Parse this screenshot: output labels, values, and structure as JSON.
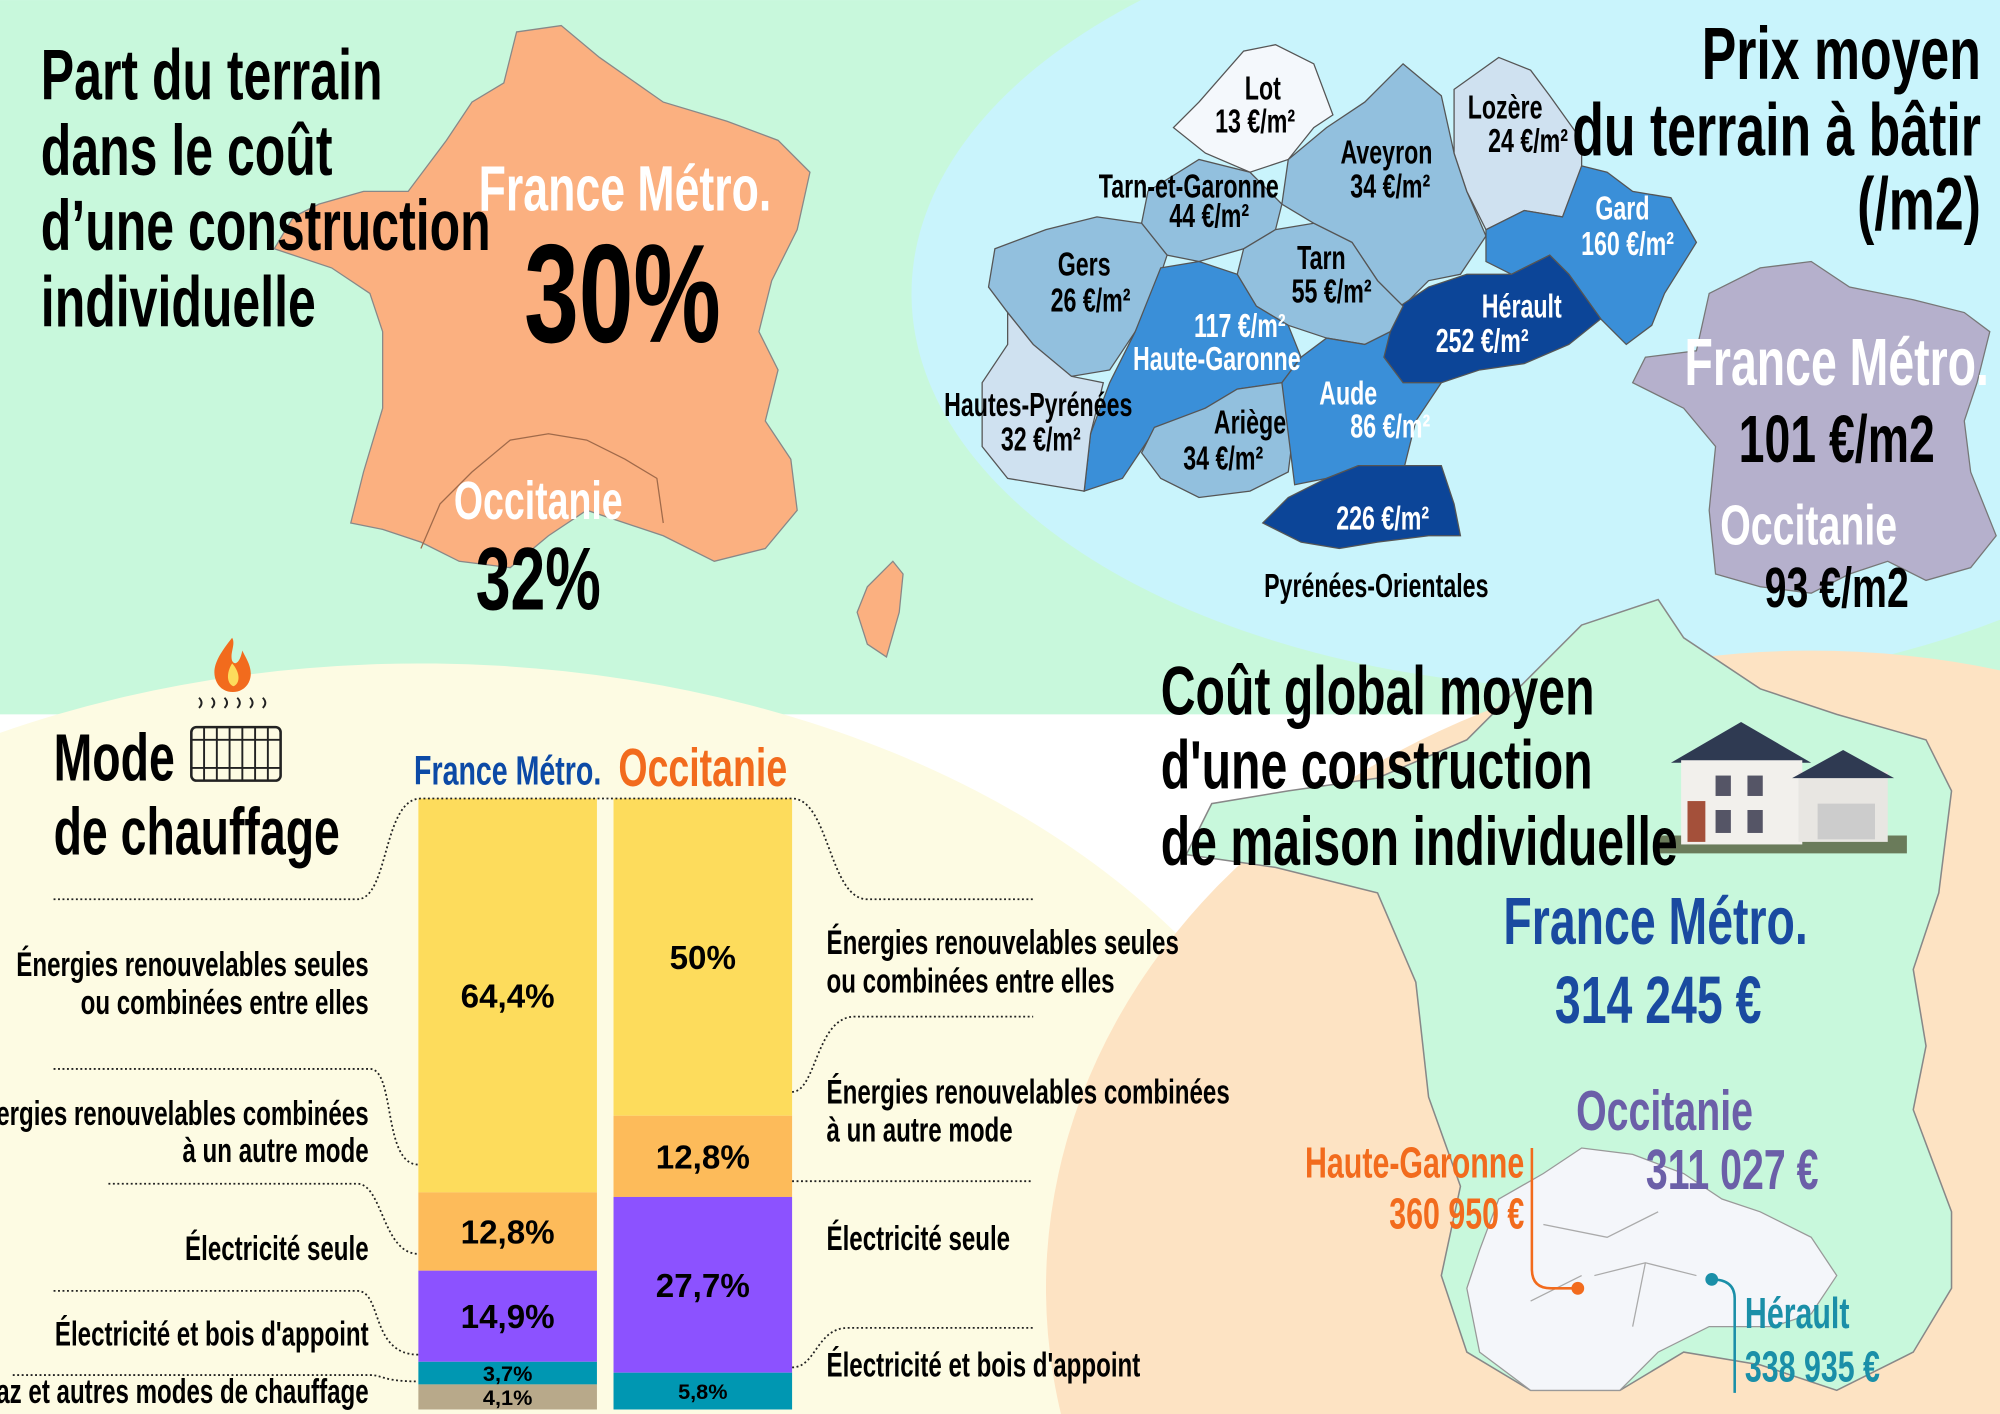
{
  "colors": {
    "mint": "#c8f8dc",
    "cyan": "#c9f4fc",
    "cream": "#fdfbe3",
    "peach": "#fde3c3",
    "france_orange": "#fbb080",
    "france_lilac": "#b5b0cc",
    "blue_dark": "#0c4598",
    "blue_mid": "#3a8fd8",
    "blue_light": "#92c0de",
    "blue_pale": "#cfe1f0",
    "white_dept": "#f4f8fc",
    "france_blue": "#1a4aa0",
    "occitanie_orange": "#f26b1d",
    "occitanie_purple": "#6b5fa8",
    "herault_teal": "#1a8fa8"
  },
  "land_share": {
    "title": [
      "Part du terrain",
      "dans le coût",
      "d’une construction",
      "individuelle"
    ],
    "france_label": "France Métro.",
    "france_value": "30%",
    "occitanie_label": "Occitanie",
    "occitanie_value": "32%"
  },
  "land_price": {
    "title": [
      "Prix moyen",
      "du terrain à bâtir",
      "(/m2)"
    ],
    "france_label": "France Métro.",
    "france_value": "101 €/m2",
    "occitanie_label": "Occitanie",
    "occitanie_value": "93 €/m2",
    "departments": [
      {
        "name": "Lot",
        "price": "13 €/m²",
        "shade": "white_dept"
      },
      {
        "name": "Lozère",
        "price": "24 €/m²",
        "shade": "blue_pale"
      },
      {
        "name": "Aveyron",
        "price": "34 €/m²",
        "shade": "blue_light"
      },
      {
        "name": "Tarn-et-Garonne",
        "price": "44 €/m²",
        "shade": "blue_light"
      },
      {
        "name": "Gard",
        "price": "160 €/m²",
        "shade": "blue_mid"
      },
      {
        "name": "Gers",
        "price": "26 €/m²",
        "shade": "blue_light"
      },
      {
        "name": "Tarn",
        "price": "55 €/m²",
        "shade": "blue_light"
      },
      {
        "name": "Hérault",
        "price": "252 €/m²",
        "shade": "blue_dark"
      },
      {
        "name": "Haute-Garonne",
        "price": "117 €/m²",
        "shade": "blue_mid"
      },
      {
        "name": "Hautes-Pyrénées",
        "price": "32 €/m²",
        "shade": "blue_pale"
      },
      {
        "name": "Aude",
        "price": "86 €/m²",
        "shade": "blue_mid"
      },
      {
        "name": "Ariège",
        "price": "34 €/m²",
        "shade": "blue_light"
      },
      {
        "name": "Pyrénées-Orientales",
        "price": "226 €/m²",
        "shade": "blue_dark"
      }
    ]
  },
  "heating": {
    "title": [
      "Mode",
      "de chauffage"
    ],
    "icon": "radiator-flame-icon",
    "left_labels": [
      [
        "Énergies renouvelables seules",
        "ou combinées entre elles"
      ],
      [
        "Énergies renouvelables combinées",
        "à un autre mode"
      ],
      [
        "Électricité seule"
      ],
      [
        "Électricité et bois d'appoint"
      ],
      [
        "Gaz et autres modes de chauffage"
      ]
    ],
    "right_labels": [
      [
        "Énergies renouvelables seules",
        "ou combinées entre elles"
      ],
      [
        "Énergies renouvelables combinées",
        "à un autre mode"
      ],
      [
        "Électricité seule"
      ],
      [
        "Électricité et bois d'appoint"
      ]
    ]
  },
  "chart_data": {
    "type": "bar",
    "stacked": true,
    "categories": [
      "France Métro.",
      "Occitanie"
    ],
    "unit": "%",
    "series": [
      {
        "name": "Énergies renouvelables seules ou combinées entre elles",
        "values": [
          64.4,
          50
        ],
        "color": "#fddc5c"
      },
      {
        "name": "Énergies renouvelables combinées à un autre mode",
        "values": [
          12.8,
          12.8
        ],
        "color": "#fdbb5a"
      },
      {
        "name": "Électricité seule",
        "values": [
          14.9,
          27.7
        ],
        "color": "#8c52ff"
      },
      {
        "name": "Électricité et bois d'appoint",
        "values": [
          3.7,
          5.8
        ],
        "color": "#0097b2"
      },
      {
        "name": "Gaz et autres modes de chauffage",
        "values": [
          4.1,
          null
        ],
        "color": "#b8a98a"
      }
    ],
    "category_colors": [
      "#0c4aa6",
      "#f26b1d"
    ]
  },
  "build_cost": {
    "title": [
      "Coût global moyen",
      "d'une construction",
      "de maison individuelle"
    ],
    "france_label": "France Métro.",
    "france_value": "314 245 €",
    "occitanie_label": "Occitanie",
    "occitanie_value": "311 027 €",
    "haute_garonne_label": "Haute-Garonne",
    "haute_garonne_value": "360 950 €",
    "herault_label": "Hérault",
    "herault_value": "338 935 €",
    "image": "house-photo"
  }
}
